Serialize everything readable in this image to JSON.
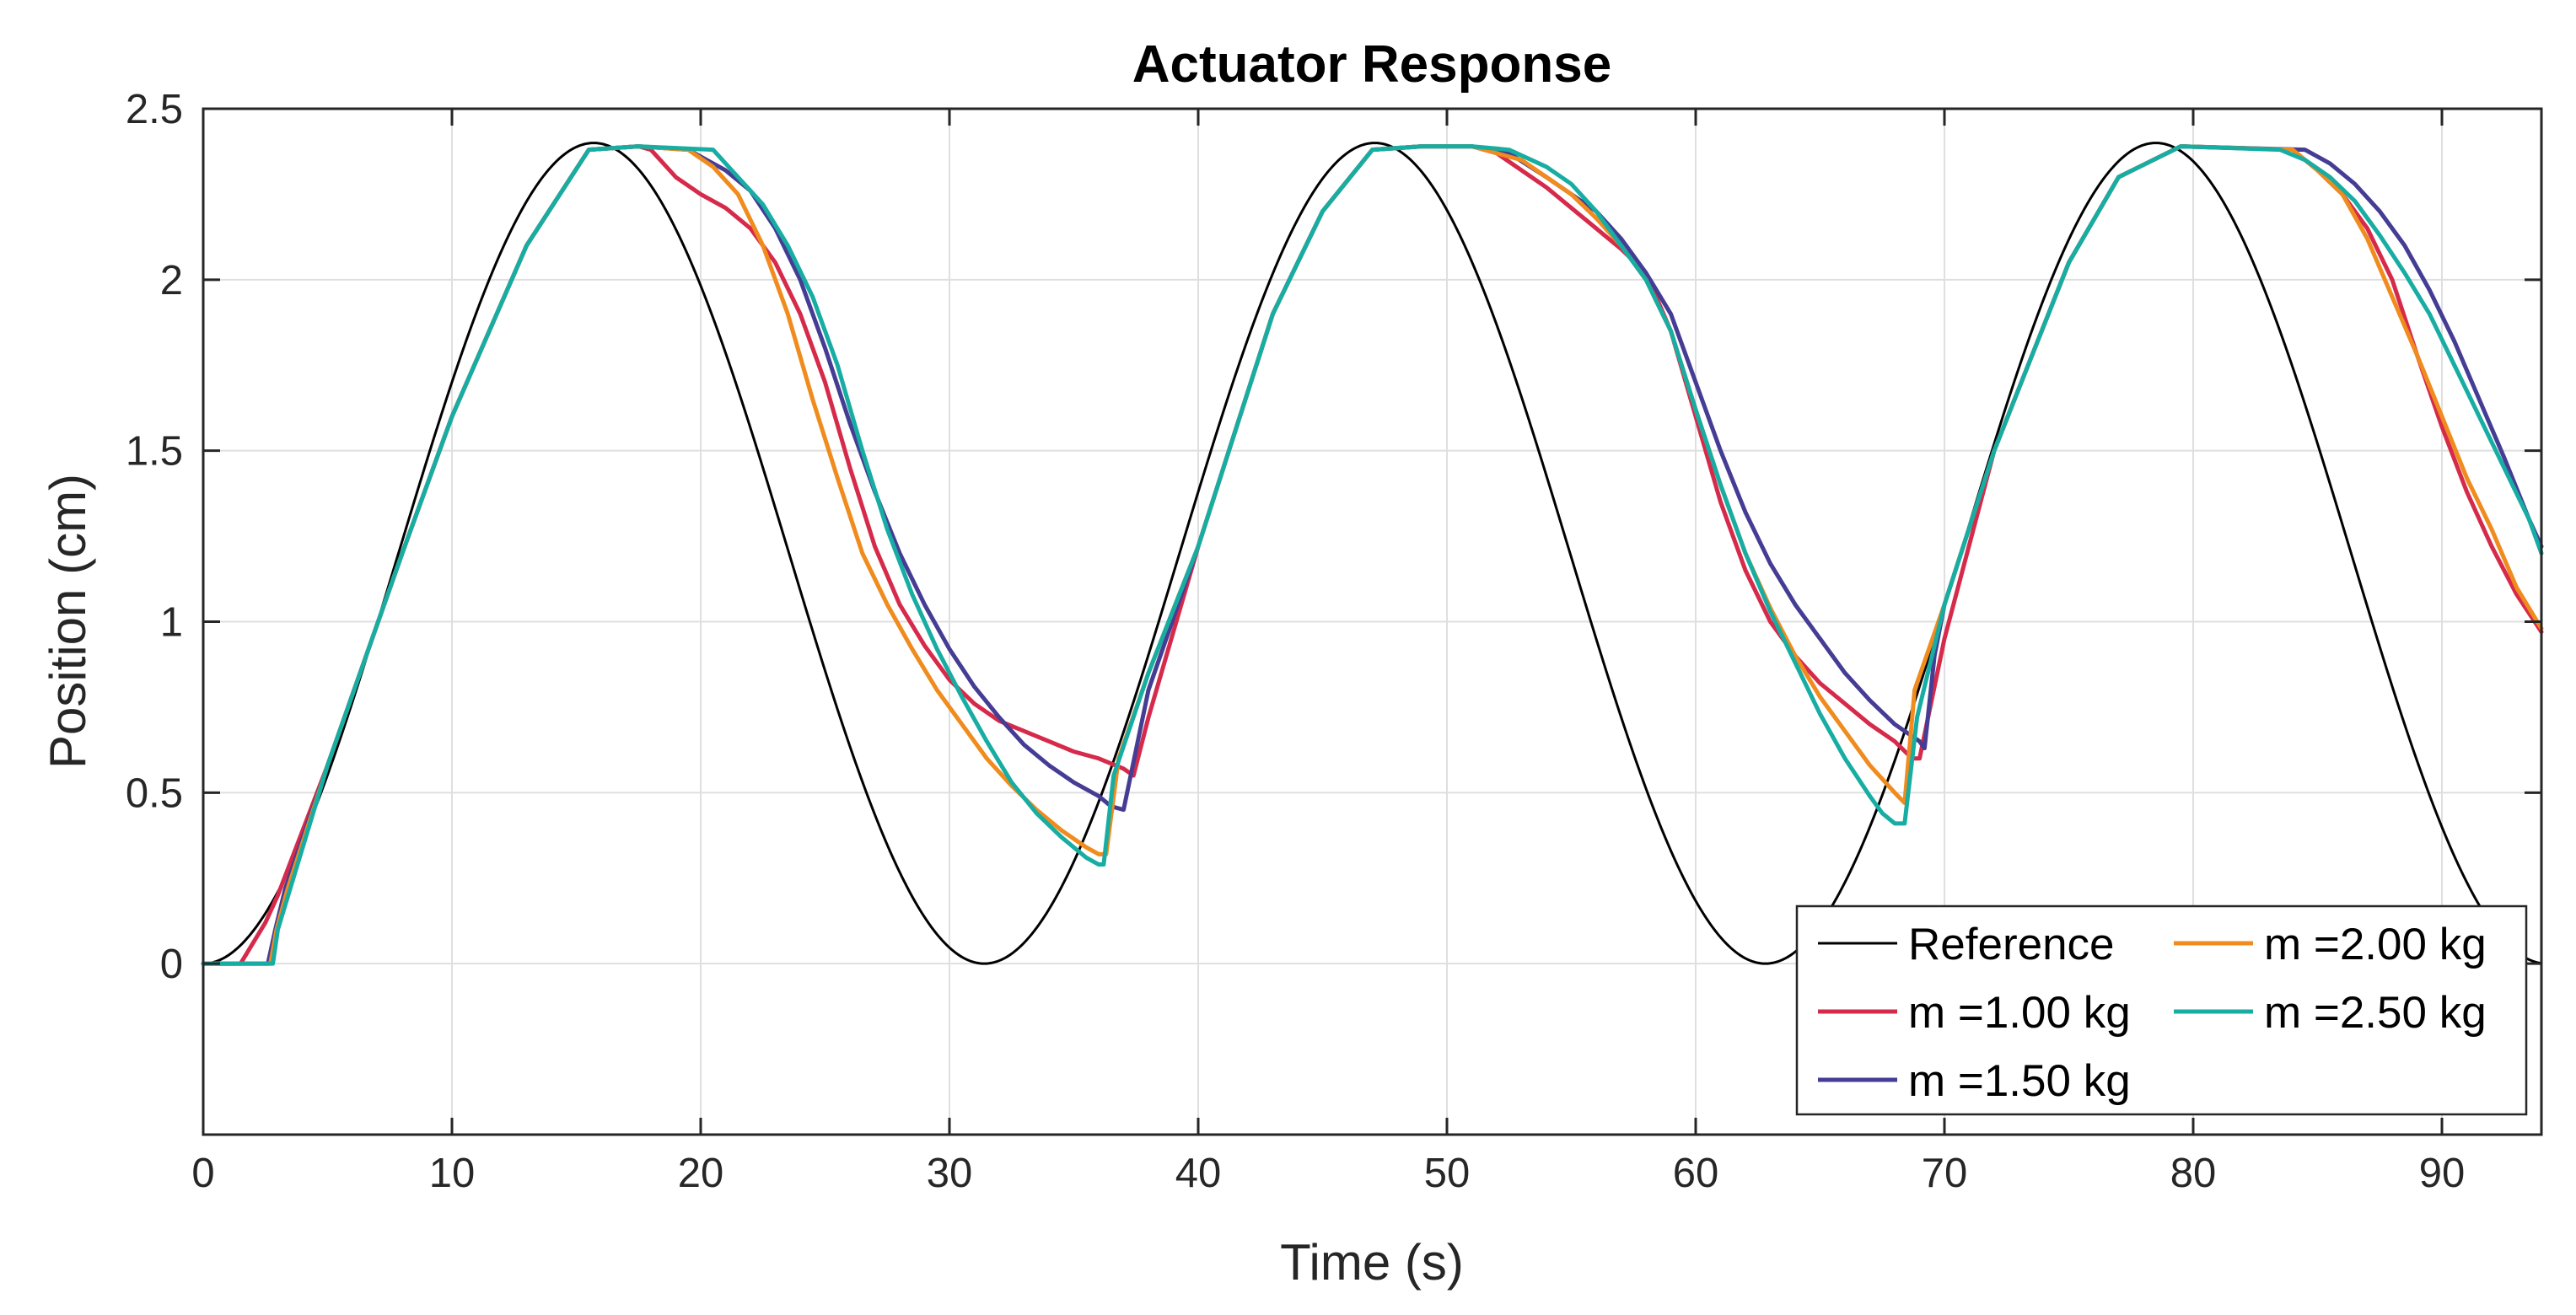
{
  "chart_data": {
    "type": "line",
    "title": "Actuator Response",
    "xlabel": "Time (s)",
    "ylabel": "Position (cm)",
    "xlim": [
      0,
      94
    ],
    "ylim": [
      -0.5,
      2.5
    ],
    "xticks": [
      0,
      10,
      20,
      30,
      40,
      50,
      60,
      70,
      80,
      90
    ],
    "yticks": [
      0,
      0.5,
      1,
      1.5,
      2,
      2.5
    ],
    "xtick_labels": [
      "0",
      "10",
      "20",
      "30",
      "40",
      "50",
      "60",
      "70",
      "80",
      "90"
    ],
    "ytick_labels": [
      "0",
      "0.5",
      "1",
      "1.5",
      "2",
      "2.5"
    ],
    "grid": true,
    "legend_position": "bottom-right",
    "reference": {
      "name": "Reference",
      "color": "#000000",
      "function": "1.2*(1-cos(2*pi*t/31.4))",
      "amplitude": 1.2,
      "period": 31.4
    },
    "series": [
      {
        "name": "m =1.00 kg",
        "color": "#D62A4B",
        "x": [
          0,
          1.5,
          2.5,
          3,
          5,
          8,
          10,
          13,
          15.5,
          17.5,
          18,
          19,
          20,
          21,
          22,
          23,
          24,
          25,
          26,
          27,
          28,
          29,
          30,
          31,
          32,
          33,
          34,
          35,
          36,
          37,
          37.4,
          38,
          40,
          43,
          45,
          47,
          49,
          51,
          52,
          54,
          56,
          57,
          58,
          59,
          60,
          61,
          62,
          63,
          64,
          65,
          66,
          67,
          68,
          68.7,
          69,
          70,
          72,
          75,
          77,
          79.5,
          84,
          85,
          86,
          87,
          88,
          89,
          90,
          91,
          92,
          93,
          94
        ],
        "y": [
          0,
          0,
          0.12,
          0.2,
          0.58,
          1.2,
          1.6,
          2.1,
          2.38,
          2.39,
          2.38,
          2.3,
          2.25,
          2.21,
          2.15,
          2.05,
          1.9,
          1.7,
          1.45,
          1.22,
          1.05,
          0.93,
          0.83,
          0.76,
          0.71,
          0.68,
          0.65,
          0.62,
          0.6,
          0.57,
          0.55,
          0.72,
          1.22,
          1.9,
          2.2,
          2.38,
          2.39,
          2.39,
          2.37,
          2.27,
          2.15,
          2.09,
          2.02,
          1.85,
          1.6,
          1.35,
          1.15,
          1.0,
          0.9,
          0.82,
          0.76,
          0.7,
          0.65,
          0.6,
          0.6,
          0.95,
          1.5,
          2.05,
          2.3,
          2.39,
          2.38,
          2.32,
          2.25,
          2.15,
          2.0,
          1.78,
          1.57,
          1.38,
          1.22,
          1.08,
          0.97
        ]
      },
      {
        "name": "m =1.50 kg",
        "color": "#453D94",
        "x": [
          0,
          2.6,
          2.9,
          3.3,
          5,
          8,
          10,
          13,
          15.5,
          17.5,
          19.5,
          21,
          22,
          23,
          24,
          25,
          26,
          27,
          28,
          29,
          30,
          31,
          32,
          33,
          34,
          35,
          36,
          36.5,
          37,
          38,
          40,
          43,
          45,
          47,
          49,
          51,
          52.5,
          54,
          56,
          57,
          58,
          59,
          60,
          61,
          62,
          63,
          64,
          65,
          66,
          67,
          68,
          69,
          69.2,
          69.6,
          70,
          72,
          75,
          77,
          79.5,
          84.5,
          85.5,
          86.5,
          87.5,
          88.5,
          89.5,
          90.5,
          91.5,
          92.5,
          93.5,
          94
        ],
        "y": [
          0,
          0,
          0.1,
          0.22,
          0.58,
          1.2,
          1.6,
          2.1,
          2.38,
          2.39,
          2.38,
          2.32,
          2.26,
          2.15,
          2.0,
          1.8,
          1.58,
          1.38,
          1.2,
          1.05,
          0.92,
          0.81,
          0.72,
          0.64,
          0.58,
          0.53,
          0.49,
          0.46,
          0.45,
          0.8,
          1.22,
          1.9,
          2.2,
          2.38,
          2.39,
          2.39,
          2.37,
          2.3,
          2.2,
          2.12,
          2.02,
          1.9,
          1.7,
          1.5,
          1.32,
          1.17,
          1.05,
          0.95,
          0.85,
          0.77,
          0.7,
          0.65,
          0.63,
          0.9,
          1.05,
          1.5,
          2.05,
          2.3,
          2.39,
          2.38,
          2.34,
          2.28,
          2.2,
          2.1,
          1.97,
          1.82,
          1.65,
          1.48,
          1.3,
          1.22
        ]
      },
      {
        "name": "m =2.00 kg",
        "color": "#F08B1D",
        "x": [
          0,
          2.7,
          2.95,
          3.4,
          5,
          8,
          10,
          13,
          15.5,
          17.5,
          19.5,
          20.5,
          21.5,
          22.5,
          23.5,
          24.5,
          25.5,
          26.5,
          27.5,
          28.5,
          29.5,
          30.5,
          31.5,
          32.5,
          33.5,
          34.5,
          35.5,
          36,
          36.3,
          36.8,
          38,
          40,
          43,
          45,
          47,
          49,
          51,
          53,
          55,
          56,
          57,
          58,
          59,
          60,
          61,
          62,
          63,
          64,
          65,
          66,
          67,
          68,
          68.4,
          68.8,
          70,
          72,
          75,
          77,
          79.5,
          84,
          85,
          86,
          87,
          88,
          89,
          90,
          91,
          92,
          93,
          94
        ],
        "y": [
          0,
          0,
          0.1,
          0.22,
          0.58,
          1.2,
          1.6,
          2.1,
          2.38,
          2.39,
          2.38,
          2.33,
          2.25,
          2.1,
          1.9,
          1.65,
          1.42,
          1.2,
          1.05,
          0.92,
          0.8,
          0.7,
          0.6,
          0.52,
          0.45,
          0.39,
          0.34,
          0.32,
          0.32,
          0.6,
          0.85,
          1.22,
          1.9,
          2.2,
          2.38,
          2.39,
          2.39,
          2.35,
          2.25,
          2.18,
          2.1,
          2.0,
          1.85,
          1.62,
          1.4,
          1.2,
          1.04,
          0.9,
          0.78,
          0.68,
          0.58,
          0.5,
          0.47,
          0.8,
          1.05,
          1.5,
          2.05,
          2.3,
          2.39,
          2.38,
          2.32,
          2.25,
          2.12,
          1.95,
          1.78,
          1.6,
          1.42,
          1.27,
          1.1,
          0.98
        ]
      },
      {
        "name": "m =2.50 kg",
        "color": "#17ADA3",
        "x": [
          0,
          2.8,
          3.0,
          3.5,
          5,
          8,
          10,
          13,
          15.5,
          17.5,
          20.5,
          21.5,
          22.5,
          23.5,
          24.5,
          25.5,
          26.5,
          27.5,
          28.5,
          29.5,
          30.5,
          31.5,
          32.5,
          33.5,
          34.5,
          35.5,
          36,
          36.2,
          36.6,
          38,
          40,
          43,
          45,
          47,
          49,
          51,
          52.5,
          54,
          55,
          56,
          57,
          58,
          59,
          60,
          61,
          62,
          63,
          64,
          65,
          66,
          67,
          67.5,
          68,
          68.4,
          68.9,
          70,
          72,
          75,
          77,
          79.5,
          83.5,
          84.5,
          85.5,
          86.5,
          87.5,
          88.5,
          89.5,
          90.5,
          91.5,
          92.5,
          93.5,
          94
        ],
        "y": [
          0,
          0,
          0.1,
          0.22,
          0.58,
          1.2,
          1.6,
          2.1,
          2.38,
          2.39,
          2.38,
          2.3,
          2.22,
          2.1,
          1.95,
          1.75,
          1.5,
          1.27,
          1.08,
          0.92,
          0.78,
          0.65,
          0.53,
          0.44,
          0.37,
          0.31,
          0.29,
          0.29,
          0.55,
          0.85,
          1.22,
          1.9,
          2.2,
          2.38,
          2.39,
          2.39,
          2.38,
          2.33,
          2.28,
          2.2,
          2.1,
          2.0,
          1.85,
          1.62,
          1.4,
          1.2,
          1.03,
          0.88,
          0.73,
          0.6,
          0.49,
          0.44,
          0.41,
          0.41,
          0.72,
          1.05,
          1.5,
          2.05,
          2.3,
          2.39,
          2.38,
          2.35,
          2.3,
          2.23,
          2.13,
          2.02,
          1.9,
          1.75,
          1.6,
          1.45,
          1.3,
          1.2
        ]
      }
    ]
  }
}
